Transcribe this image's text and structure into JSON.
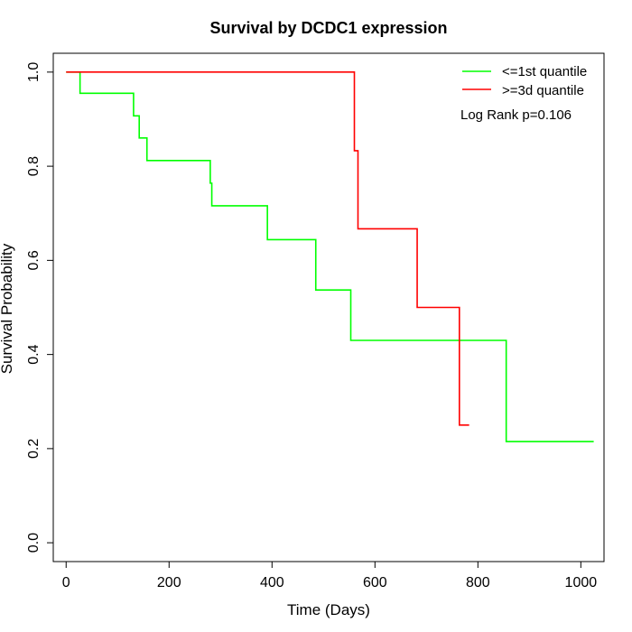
{
  "chart_data": {
    "type": "line",
    "title": "Survival by DCDC1 expression",
    "xlabel": "Time (Days)",
    "ylabel": "Survival Probability",
    "xlim": [
      -25,
      1045
    ],
    "ylim": [
      -0.04,
      1.04
    ],
    "x_ticks": [
      0,
      200,
      400,
      600,
      800,
      1000
    ],
    "y_ticks": [
      0.0,
      0.2,
      0.4,
      0.6,
      0.8,
      1.0
    ],
    "x_tick_labels": [
      "0",
      "200",
      "400",
      "600",
      "800",
      "1000"
    ],
    "y_tick_labels": [
      "0.0",
      "0.2",
      "0.4",
      "0.6",
      "0.8",
      "1.0"
    ],
    "legend_position": "top-right",
    "annotation": "Log Rank p=0.106",
    "series": [
      {
        "name": "<=1st quantile",
        "color": "#00ff00",
        "steps": [
          [
            0,
            1.0
          ],
          [
            27,
            0.955
          ],
          [
            131,
            0.907
          ],
          [
            142,
            0.86
          ],
          [
            157,
            0.812
          ],
          [
            280,
            0.764
          ],
          [
            283,
            0.716
          ],
          [
            391,
            0.644
          ],
          [
            485,
            0.537
          ],
          [
            553,
            0.43
          ],
          [
            855,
            0.215
          ],
          [
            1025,
            0.215
          ]
        ]
      },
      {
        "name": ">=3d quantile",
        "color": "#ff0000",
        "steps": [
          [
            0,
            1.0
          ],
          [
            560,
            0.833
          ],
          [
            567,
            0.667
          ],
          [
            682,
            0.5
          ],
          [
            764,
            0.25
          ],
          [
            783,
            0.25
          ]
        ]
      }
    ]
  }
}
